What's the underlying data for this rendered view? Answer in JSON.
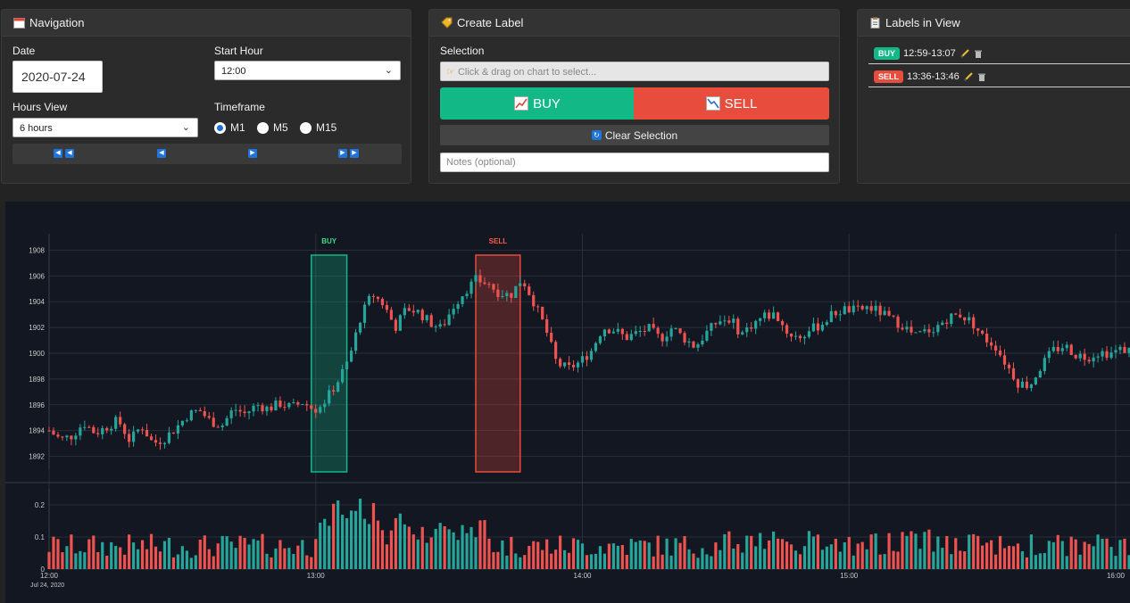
{
  "navigation": {
    "title": "Navigation",
    "date_label": "Date",
    "date_value": "2020-07-24",
    "start_hour_label": "Start Hour",
    "start_hour_value": "12:00",
    "hours_view_label": "Hours View",
    "hours_view_value": "6 hours",
    "timeframe_label": "Timeframe",
    "timeframes": [
      "M1",
      "M5",
      "M15"
    ],
    "timeframe_selected": "M1"
  },
  "create_label": {
    "title": "Create Label",
    "selection_label": "Selection",
    "selection_placeholder": "Click & drag on chart to select...",
    "buy_label": "BUY",
    "sell_label": "SELL",
    "clear_label": "Clear Selection",
    "notes_placeholder": "Notes (optional)"
  },
  "labels_in_view": {
    "title": "Labels in View",
    "items": [
      {
        "type": "BUY",
        "range": "12:59-13:07"
      },
      {
        "type": "SELL",
        "range": "13:36-13:46"
      }
    ]
  },
  "colors": {
    "buy": "#12b886",
    "sell": "#e74c3c",
    "up_candle": "#26a69a",
    "down_candle": "#ef5350",
    "chart_bg": "#131722"
  },
  "chart_data": {
    "type": "candlestick",
    "price_ticks": [
      "1892",
      "1894",
      "1896",
      "1898",
      "1900",
      "1902",
      "1904",
      "1906",
      "1908"
    ],
    "volume_ticks": [
      "0",
      "0.1",
      "0.2"
    ],
    "time_ticks": [
      "12:00",
      "13:00",
      "14:00",
      "15:00",
      "16:00"
    ],
    "date_label": "Jul 24, 2020",
    "ylim": [
      1891,
      1909
    ],
    "annotations": [
      {
        "label": "BUY",
        "start": "12:59",
        "end": "13:07"
      },
      {
        "label": "SELL",
        "start": "13:36",
        "end": "13:46"
      }
    ],
    "close_path": [
      1894.0,
      1893.3,
      1893.6,
      1894.6,
      1893.8,
      1894.3,
      1894.8,
      1893.2,
      1894.4,
      1893.0,
      1893.4,
      1894.2,
      1895.2,
      1895.6,
      1894.7,
      1894.4,
      1895.7,
      1895.3,
      1896.0,
      1895.7,
      1896.1,
      1895.8,
      1896.2,
      1895.6,
      1896.4,
      1897.8,
      1899.5,
      1902.8,
      1904.6,
      1903.8,
      1902.0,
      1903.5,
      1903.2,
      1902.4,
      1901.9,
      1903.6,
      1904.8,
      1905.7,
      1905.4,
      1904.7,
      1904.5,
      1905.8,
      1904.0,
      1902.0,
      1899.2,
      1898.8,
      1899.3,
      1900.2,
      1902.0,
      1901.8,
      1901.2,
      1901.6,
      1901.9,
      1901.1,
      1902.0,
      1901.2,
      1900.5,
      1901.6,
      1902.5,
      1902.7,
      1901.5,
      1902.3,
      1902.9,
      1903.0,
      1901.6,
      1901.2,
      1901.8,
      1902.3,
      1903.1,
      1903.4,
      1903.3,
      1903.6,
      1903.2,
      1902.6,
      1902.2,
      1901.3,
      1901.7,
      1902.1,
      1902.8,
      1903.0,
      1902.4,
      1901.2,
      1900.6,
      1899.1,
      1897.7,
      1897.5,
      1899.0,
      1900.2,
      1900.6,
      1899.9,
      1899.7,
      1900.1,
      1900.0,
      1900.3,
      1900.2
    ]
  }
}
